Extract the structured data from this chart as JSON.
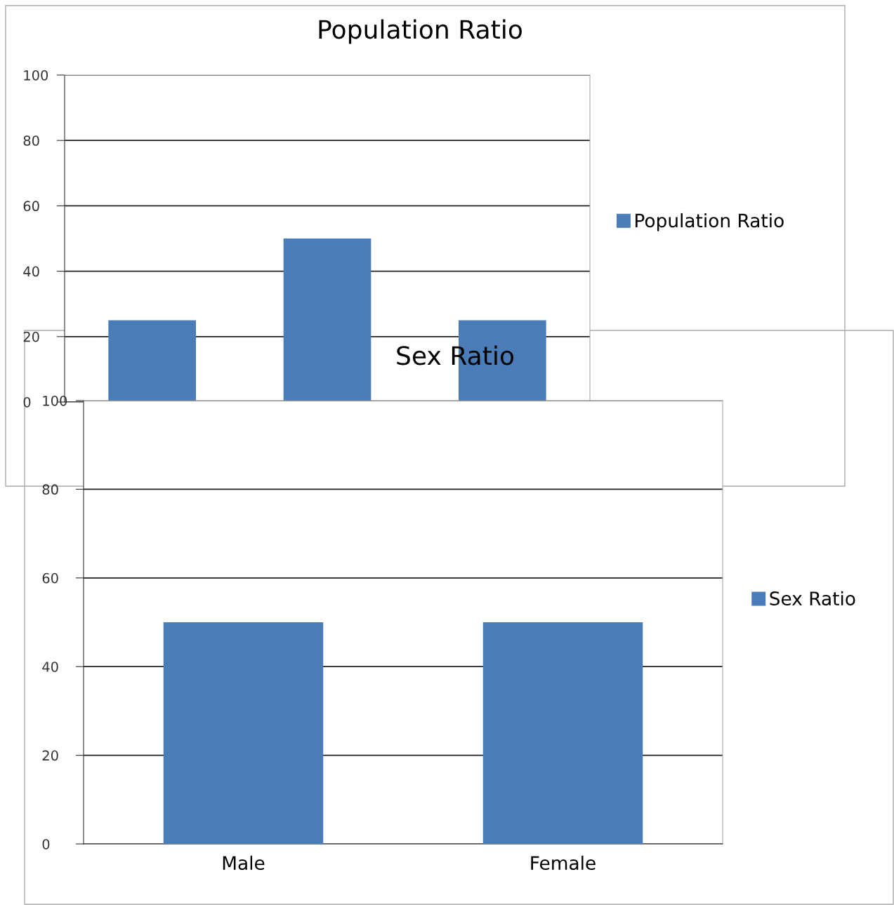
{
  "chart_data": [
    {
      "type": "bar",
      "title": "Population Ratio",
      "categories": [
        null,
        null,
        null
      ],
      "series": [
        {
          "name": "Population Ratio",
          "color": "#4a7db8",
          "values": [
            25,
            50,
            25
          ]
        }
      ],
      "ylim": [
        0,
        100
      ],
      "yticks": [
        0,
        20,
        40,
        60,
        80,
        100
      ],
      "grid": "y",
      "legend": "right"
    },
    {
      "type": "bar",
      "title": "Sex Ratio",
      "categories": [
        "Male",
        "Female"
      ],
      "series": [
        {
          "name": "Sex Ratio",
          "color": "#4a7db8",
          "values": [
            50,
            50
          ]
        }
      ],
      "ylim": [
        0,
        100
      ],
      "yticks": [
        0,
        20,
        40,
        60,
        80,
        100
      ],
      "grid": "y",
      "legend": "right"
    }
  ]
}
